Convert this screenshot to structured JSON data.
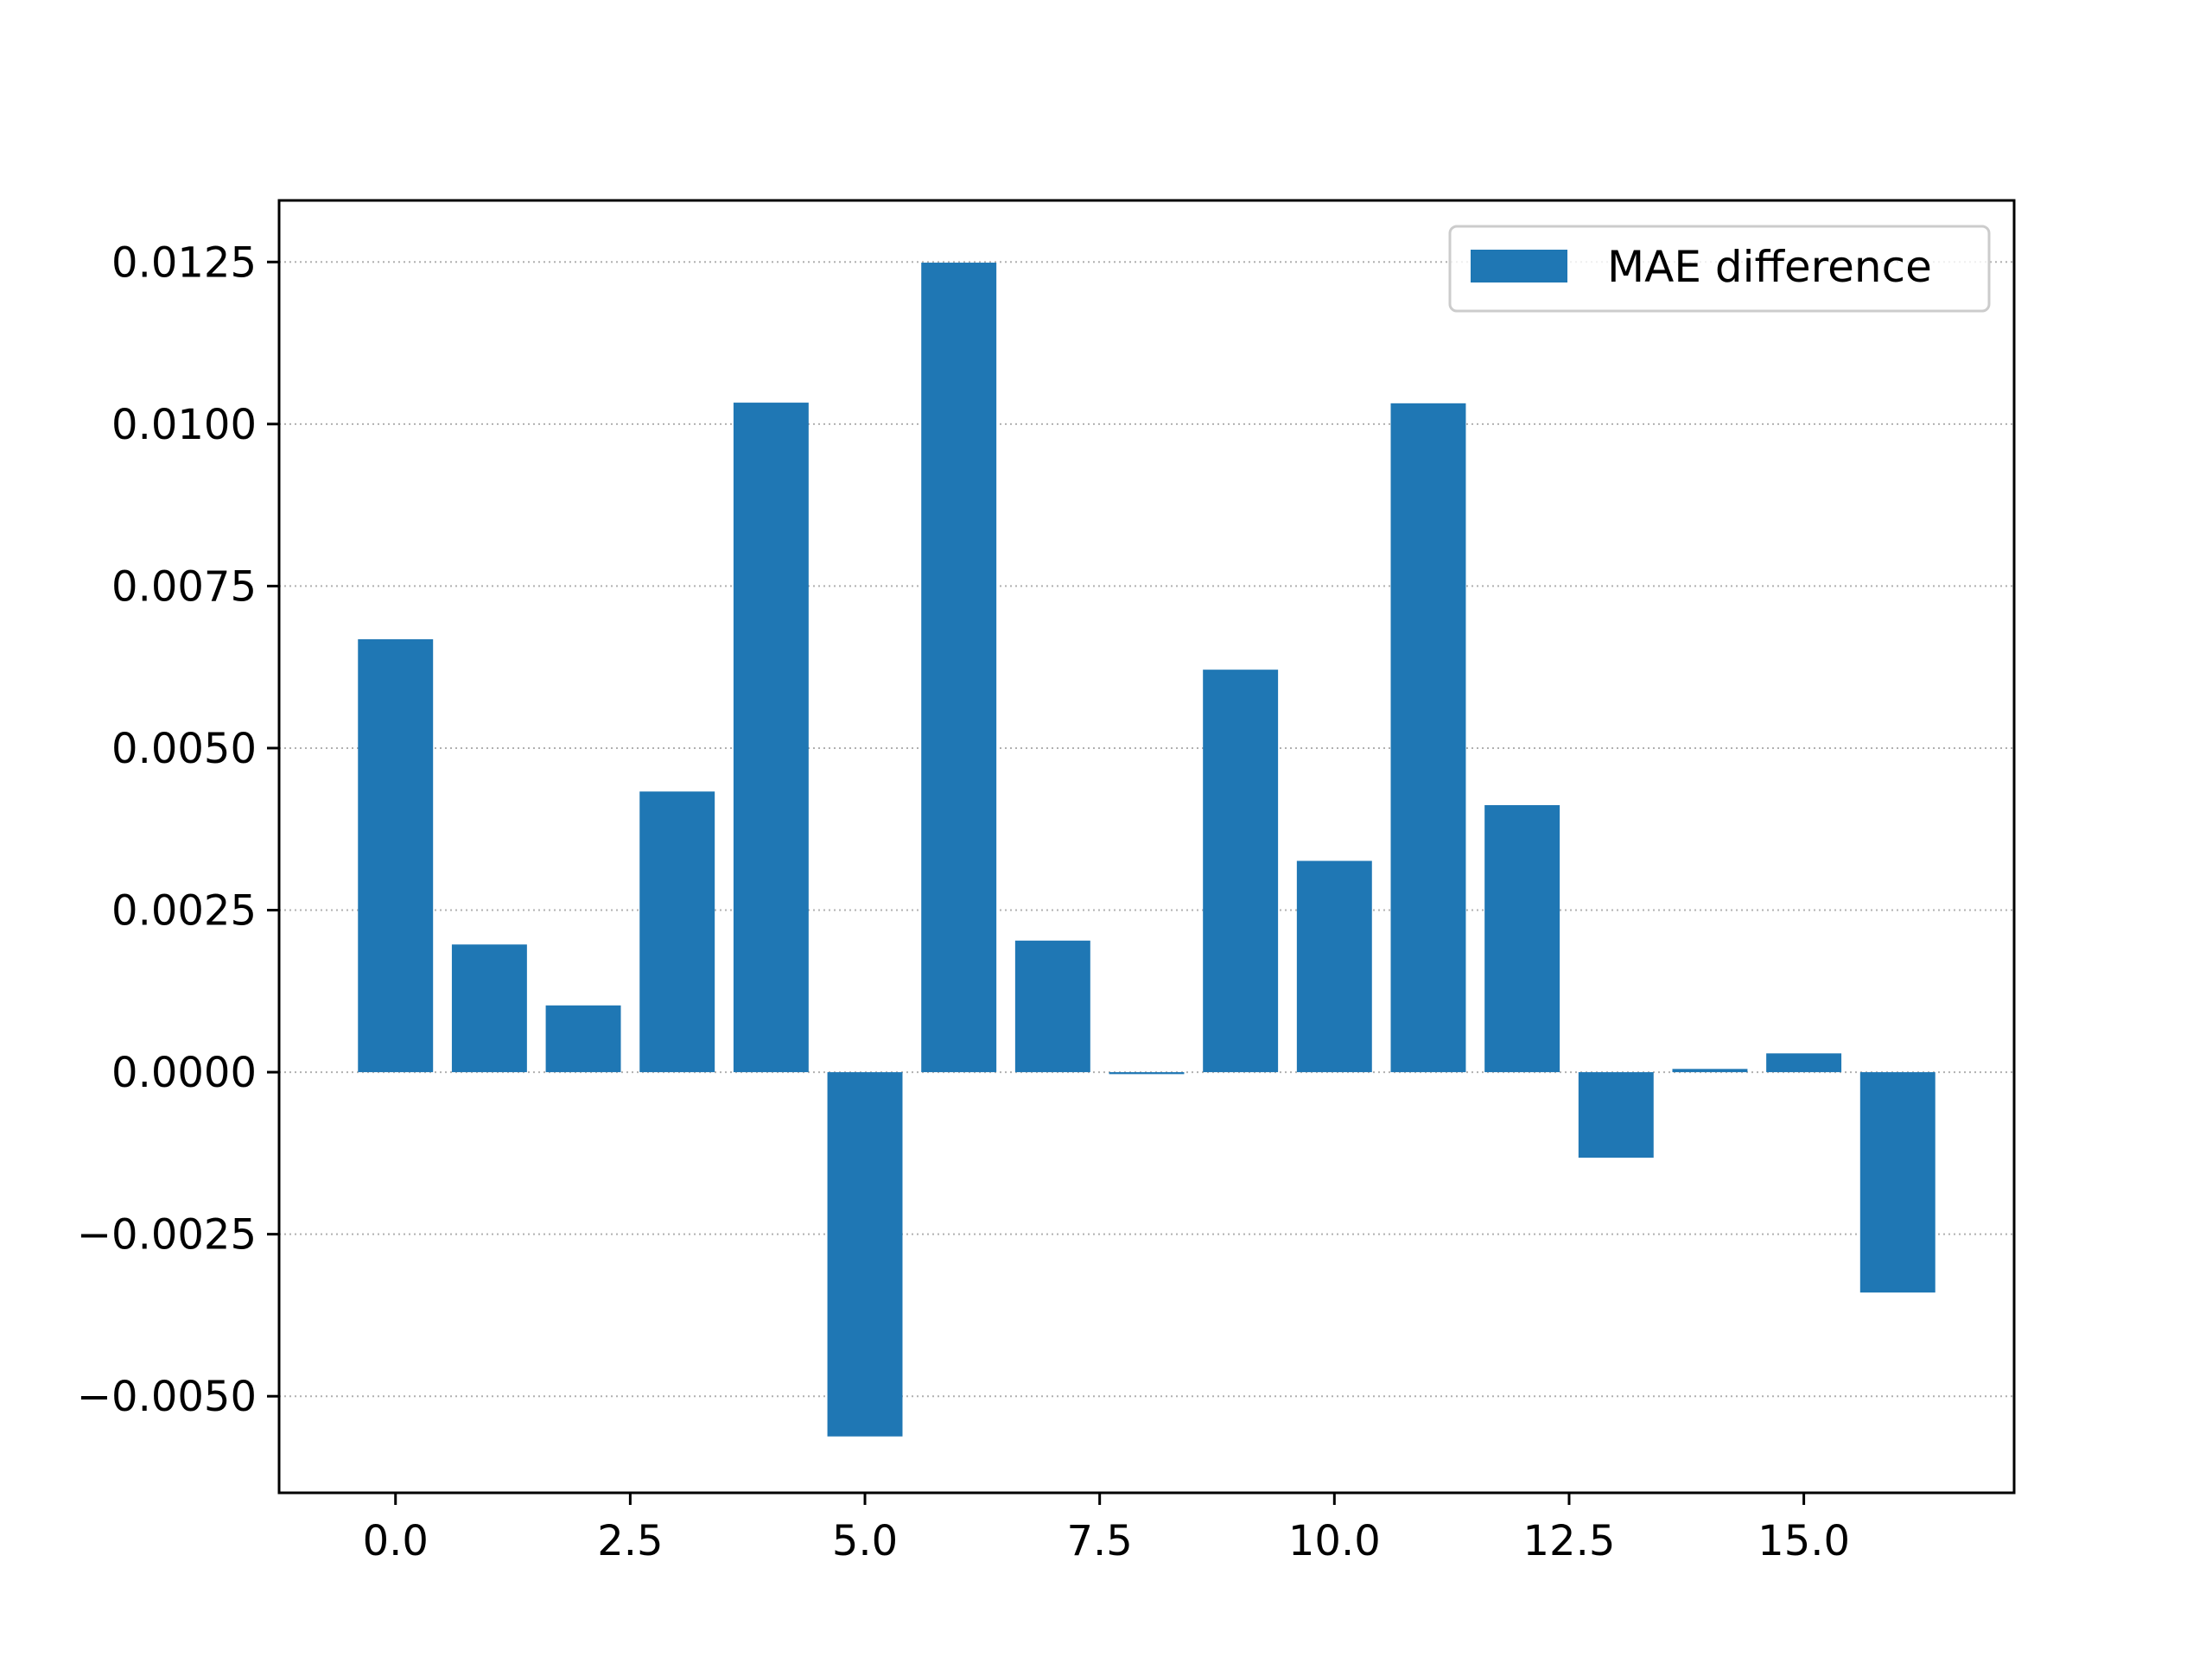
{
  "chart_data": {
    "type": "bar",
    "title": "",
    "xlabel": "",
    "ylabel": "",
    "x": [
      0,
      1,
      2,
      3,
      4,
      5,
      6,
      7,
      8,
      9,
      10,
      11,
      12,
      13,
      14,
      15,
      16
    ],
    "series": [
      {
        "name": "MAE difference",
        "values": [
          0.00668,
          0.00197,
          0.00103,
          0.00433,
          0.01033,
          -0.00562,
          0.01249,
          0.00203,
          -3e-05,
          0.00621,
          0.00326,
          0.01032,
          0.00412,
          -0.00132,
          5e-05,
          0.00029,
          -0.0034
        ]
      }
    ],
    "xlim": [
      -1.24,
      17.24
    ],
    "ylim": [
      -0.00649,
      0.01345
    ],
    "x_ticks": [
      0,
      2.5,
      5,
      7.5,
      10,
      12.5,
      15
    ],
    "x_tick_labels": [
      "0.0",
      "2.5",
      "5.0",
      "7.5",
      "10.0",
      "12.5",
      "15.0"
    ],
    "y_ticks": [
      -0.005,
      -0.0025,
      0,
      0.0025,
      0.005,
      0.0075,
      0.01,
      0.0125
    ],
    "y_tick_labels": [
      "−0.0050",
      "−0.0025",
      "0.0000",
      "0.0025",
      "0.0050",
      "0.0075",
      "0.0100",
      "0.0125"
    ],
    "grid": {
      "y": true,
      "x": false,
      "style": "dotted"
    },
    "legend": {
      "position": "top-right",
      "entries": [
        "MAE difference"
      ]
    },
    "colors": {
      "bar": "#1f77b4",
      "grid": "#b0b0b0",
      "axes": "#000000"
    }
  }
}
